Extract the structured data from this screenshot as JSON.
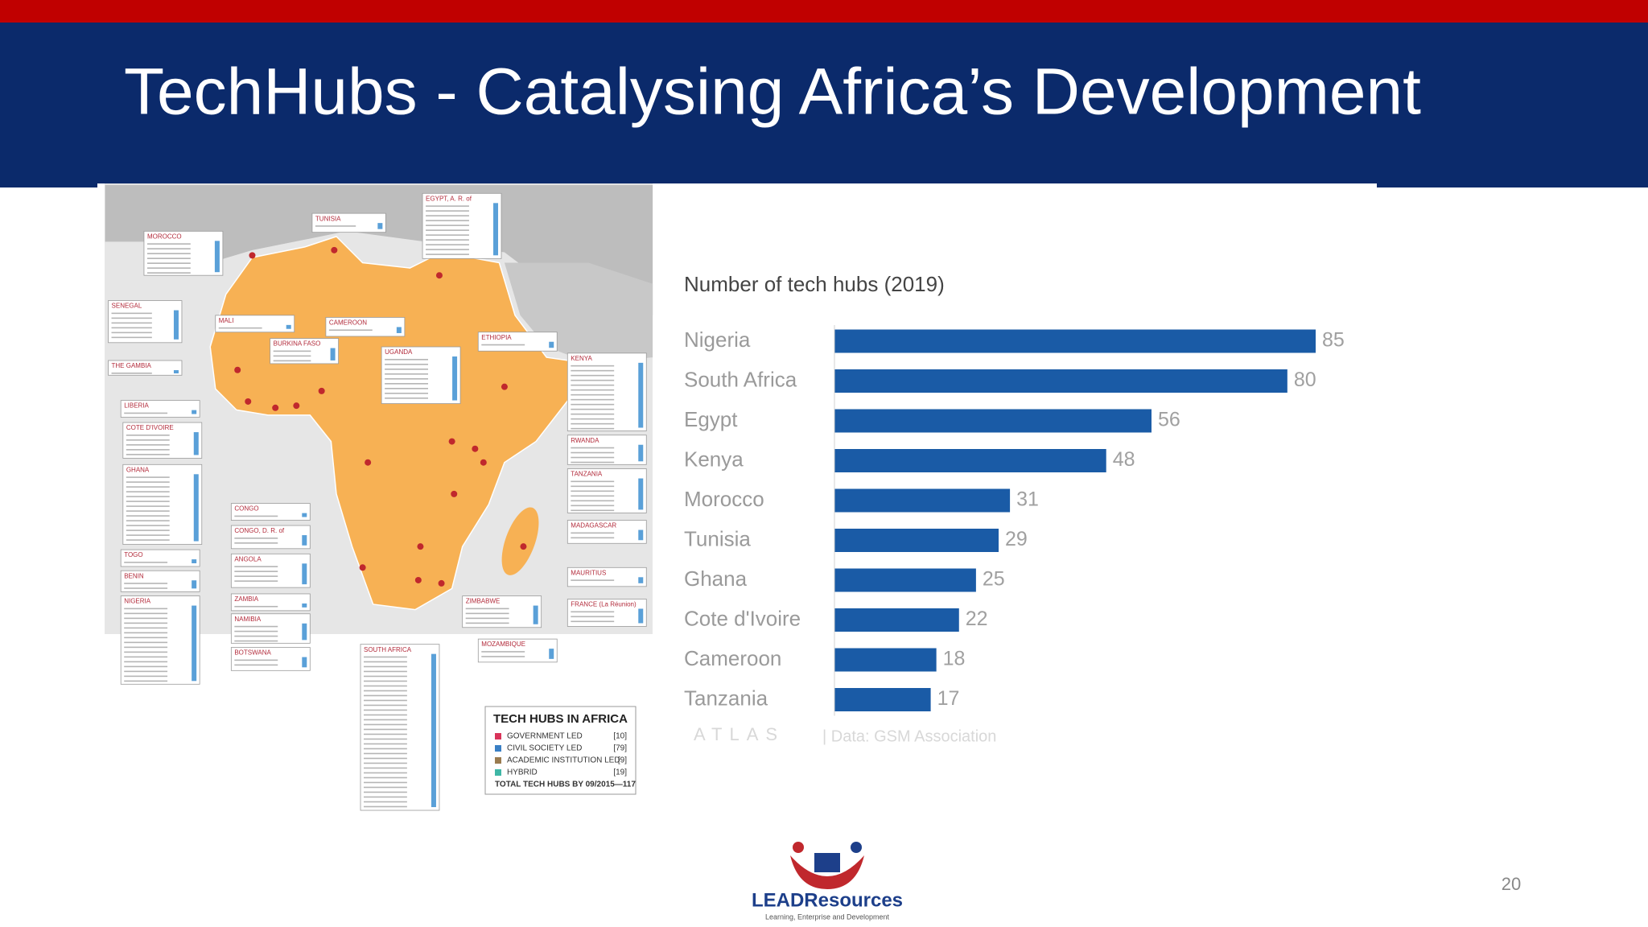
{
  "slide": {
    "title": "TechHubs - Catalysing Africa’s Development",
    "page_number": "20",
    "logo_name": "LEADResources",
    "logo_tagline": "Learning, Enterprise and Development"
  },
  "map": {
    "countries": [
      "MOROCCO",
      "TUNISIA",
      "EGYPT, A. R. of",
      "SENEGAL",
      "MALI",
      "CAMEROON",
      "ETHIOPIA",
      "THE GAMBIA",
      "BURKINA FASO",
      "UGANDA",
      "KENYA",
      "LIBERIA",
      "COTE D'IVOIRE",
      "RWANDA",
      "GHANA",
      "TANZANIA",
      "CONGO",
      "CONGO, D. R. of",
      "MADAGASCAR",
      "TOGO",
      "ANGOLA",
      "BENIN",
      "MAURITIUS",
      "NIGERIA",
      "ZAMBIA",
      "ZIMBABWE",
      "FRANCE (La Réunion)",
      "NAMIBIA",
      "MOZAMBIQUE",
      "BOTSWANA",
      "SOUTH AFRICA"
    ],
    "legend": {
      "title": "TECH HUBS IN AFRICA",
      "items": [
        {
          "label": "GOVERNMENT LED",
          "count": "[10]",
          "color": "#d9345a"
        },
        {
          "label": "CIVIL SOCIETY LED",
          "count": "[79]",
          "color": "#3a7fc4"
        },
        {
          "label": "ACADEMIC INSTITUTION LED",
          "count": "[9]",
          "color": "#9a7b4f"
        },
        {
          "label": "HYBRID",
          "count": "[19]",
          "color": "#3fb7a6"
        }
      ],
      "total": "TOTAL TECH HUBS BY 09/2015—117"
    }
  },
  "chart_data": {
    "type": "bar",
    "orientation": "horizontal",
    "title": "Number of tech hubs (2019)",
    "categories": [
      "Nigeria",
      "South Africa",
      "Egypt",
      "Kenya",
      "Morocco",
      "Tunisia",
      "Ghana",
      "Cote d'Ivoire",
      "Cameroon",
      "Tanzania"
    ],
    "values": [
      85,
      80,
      56,
      48,
      31,
      29,
      25,
      22,
      18,
      17
    ],
    "color": "#1a5ba6",
    "xlim": [
      0,
      85
    ],
    "brand": "ATLAS",
    "source": "| Data: GSM Association"
  }
}
